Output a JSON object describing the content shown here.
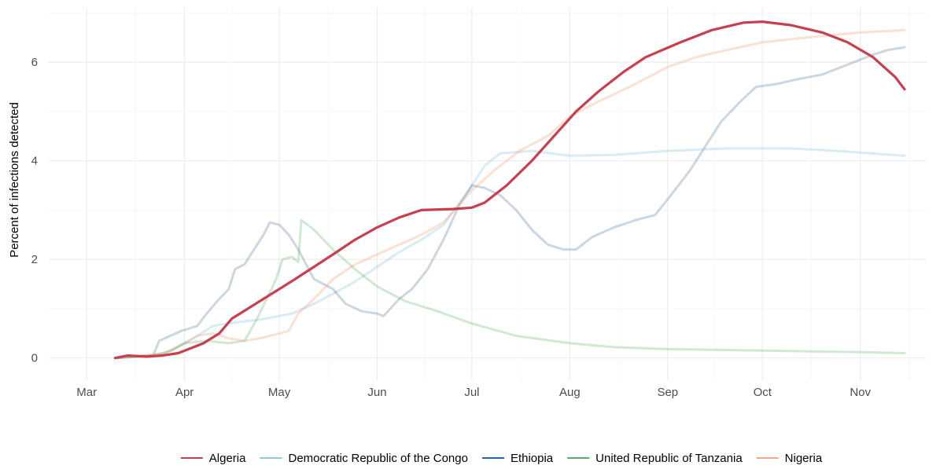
{
  "chart_data": {
    "type": "line",
    "title": "",
    "xlabel": "",
    "ylabel": "Percent of infections detected",
    "x_ticks": [
      "Mar",
      "Apr",
      "May",
      "Jun",
      "Jul",
      "Aug",
      "Sep",
      "Oct",
      "Nov"
    ],
    "x_tick_dates": [
      "2020-03-01",
      "2020-04-01",
      "2020-05-01",
      "2020-06-01",
      "2020-07-01",
      "2020-08-01",
      "2020-09-01",
      "2020-10-01",
      "2020-11-01"
    ],
    "xlim": [
      "2020-02-18",
      "2020-11-22"
    ],
    "y_ticks": [
      0,
      2,
      4,
      6
    ],
    "ylim": [
      -0.45,
      7.1
    ],
    "grid": true,
    "legend_position": "bottom",
    "series": [
      {
        "name": "Democratic Republic of the Congo",
        "color": "#92c5de",
        "opacity": 0.35,
        "points": [
          [
            "2020-03-10",
            0
          ],
          [
            "2020-03-25",
            0.08
          ],
          [
            "2020-04-01",
            0.3
          ],
          [
            "2020-04-05",
            0.45
          ],
          [
            "2020-04-10",
            0.65
          ],
          [
            "2020-04-17",
            0.72
          ],
          [
            "2020-04-25",
            0.78
          ],
          [
            "2020-05-05",
            0.9
          ],
          [
            "2020-05-12",
            1.1
          ],
          [
            "2020-05-18",
            1.3
          ],
          [
            "2020-05-25",
            1.55
          ],
          [
            "2020-06-01",
            1.85
          ],
          [
            "2020-06-08",
            2.15
          ],
          [
            "2020-06-15",
            2.4
          ],
          [
            "2020-06-22",
            2.7
          ],
          [
            "2020-06-30",
            3.4
          ],
          [
            "2020-07-05",
            3.9
          ],
          [
            "2020-07-10",
            4.15
          ],
          [
            "2020-07-20",
            4.2
          ],
          [
            "2020-08-01",
            4.1
          ],
          [
            "2020-08-15",
            4.12
          ],
          [
            "2020-09-01",
            4.2
          ],
          [
            "2020-09-20",
            4.25
          ],
          [
            "2020-10-10",
            4.25
          ],
          [
            "2020-10-25",
            4.2
          ],
          [
            "2020-11-15",
            4.1
          ]
        ]
      },
      {
        "name": "Ethiopia",
        "color": "#4a7193",
        "opacity": 0.28,
        "points": [
          [
            "2020-03-10",
            0
          ],
          [
            "2020-03-22",
            0.05
          ],
          [
            "2020-03-24",
            0.35
          ],
          [
            "2020-03-31",
            0.55
          ],
          [
            "2020-04-05",
            0.65
          ],
          [
            "2020-04-08",
            0.9
          ],
          [
            "2020-04-12",
            1.2
          ],
          [
            "2020-04-15",
            1.4
          ],
          [
            "2020-04-17",
            1.8
          ],
          [
            "2020-04-20",
            1.9
          ],
          [
            "2020-04-23",
            2.2
          ],
          [
            "2020-04-26",
            2.5
          ],
          [
            "2020-04-28",
            2.75
          ],
          [
            "2020-05-01",
            2.7
          ],
          [
            "2020-05-04",
            2.5
          ],
          [
            "2020-05-07",
            2.2
          ],
          [
            "2020-05-12",
            1.6
          ],
          [
            "2020-05-18",
            1.4
          ],
          [
            "2020-05-22",
            1.1
          ],
          [
            "2020-05-27",
            0.95
          ],
          [
            "2020-06-01",
            0.9
          ],
          [
            "2020-06-03",
            0.85
          ],
          [
            "2020-06-08",
            1.2
          ],
          [
            "2020-06-12",
            1.4
          ],
          [
            "2020-06-17",
            1.8
          ],
          [
            "2020-06-22",
            2.4
          ],
          [
            "2020-06-27",
            3.1
          ],
          [
            "2020-07-01",
            3.5
          ],
          [
            "2020-07-05",
            3.45
          ],
          [
            "2020-07-10",
            3.3
          ],
          [
            "2020-07-15",
            3.0
          ],
          [
            "2020-07-20",
            2.6
          ],
          [
            "2020-07-25",
            2.3
          ],
          [
            "2020-07-30",
            2.2
          ],
          [
            "2020-08-03",
            2.2
          ],
          [
            "2020-08-08",
            2.45
          ],
          [
            "2020-08-15",
            2.65
          ],
          [
            "2020-08-22",
            2.8
          ],
          [
            "2020-08-28",
            2.9
          ],
          [
            "2020-09-02",
            3.3
          ],
          [
            "2020-09-08",
            3.8
          ],
          [
            "2020-09-13",
            4.3
          ],
          [
            "2020-09-18",
            4.8
          ],
          [
            "2020-09-24",
            5.2
          ],
          [
            "2020-09-29",
            5.5
          ],
          [
            "2020-10-05",
            5.55
          ],
          [
            "2020-10-12",
            5.65
          ],
          [
            "2020-10-20",
            5.75
          ],
          [
            "2020-10-28",
            5.95
          ],
          [
            "2020-11-05",
            6.15
          ],
          [
            "2020-11-10",
            6.25
          ],
          [
            "2020-11-15",
            6.3
          ]
        ]
      },
      {
        "name": "Nigeria",
        "color": "#f4a582",
        "opacity": 0.35,
        "points": [
          [
            "2020-03-10",
            0
          ],
          [
            "2020-03-18",
            0.05
          ],
          [
            "2020-03-26",
            0.1
          ],
          [
            "2020-04-01",
            0.3
          ],
          [
            "2020-04-05",
            0.45
          ],
          [
            "2020-04-10",
            0.5
          ],
          [
            "2020-04-15",
            0.4
          ],
          [
            "2020-04-20",
            0.35
          ],
          [
            "2020-04-25",
            0.4
          ],
          [
            "2020-05-01",
            0.5
          ],
          [
            "2020-05-04",
            0.55
          ],
          [
            "2020-05-07",
            0.9
          ],
          [
            "2020-05-12",
            1.2
          ],
          [
            "2020-05-18",
            1.6
          ],
          [
            "2020-05-25",
            1.9
          ],
          [
            "2020-06-01",
            2.1
          ],
          [
            "2020-06-08",
            2.3
          ],
          [
            "2020-06-15",
            2.5
          ],
          [
            "2020-06-22",
            2.75
          ],
          [
            "2020-07-01",
            3.4
          ],
          [
            "2020-07-08",
            3.8
          ],
          [
            "2020-07-16",
            4.2
          ],
          [
            "2020-07-25",
            4.5
          ],
          [
            "2020-08-01",
            4.9
          ],
          [
            "2020-08-10",
            5.2
          ],
          [
            "2020-08-20",
            5.5
          ],
          [
            "2020-09-01",
            5.9
          ],
          [
            "2020-09-10",
            6.1
          ],
          [
            "2020-09-20",
            6.25
          ],
          [
            "2020-10-01",
            6.4
          ],
          [
            "2020-10-15",
            6.5
          ],
          [
            "2020-11-01",
            6.6
          ],
          [
            "2020-11-15",
            6.65
          ]
        ]
      },
      {
        "name": "United Republic of Tanzania",
        "color": "#5aae61",
        "opacity": 0.28,
        "points": [
          [
            "2020-03-10",
            0
          ],
          [
            "2020-03-22",
            0.05
          ],
          [
            "2020-03-28",
            0.15
          ],
          [
            "2020-04-01",
            0.3
          ],
          [
            "2020-04-08",
            0.35
          ],
          [
            "2020-04-15",
            0.3
          ],
          [
            "2020-04-20",
            0.35
          ],
          [
            "2020-04-24",
            0.8
          ],
          [
            "2020-04-27",
            1.2
          ],
          [
            "2020-04-30",
            1.6
          ],
          [
            "2020-05-02",
            2.0
          ],
          [
            "2020-05-05",
            2.05
          ],
          [
            "2020-05-07",
            1.95
          ],
          [
            "2020-05-08",
            2.8
          ],
          [
            "2020-05-12",
            2.6
          ],
          [
            "2020-05-18",
            2.2
          ],
          [
            "2020-05-25",
            1.8
          ],
          [
            "2020-06-01",
            1.45
          ],
          [
            "2020-06-10",
            1.15
          ],
          [
            "2020-06-20",
            0.95
          ],
          [
            "2020-07-01",
            0.7
          ],
          [
            "2020-07-15",
            0.45
          ],
          [
            "2020-08-01",
            0.3
          ],
          [
            "2020-08-15",
            0.22
          ],
          [
            "2020-09-01",
            0.18
          ],
          [
            "2020-10-01",
            0.15
          ],
          [
            "2020-11-01",
            0.12
          ],
          [
            "2020-11-15",
            0.1
          ]
        ]
      },
      {
        "name": "Algeria",
        "color": "#c83f4f",
        "opacity": 1,
        "points": [
          [
            "2020-03-10",
            0
          ],
          [
            "2020-03-14",
            0.05
          ],
          [
            "2020-03-20",
            0.03
          ],
          [
            "2020-03-25",
            0.05
          ],
          [
            "2020-03-30",
            0.1
          ],
          [
            "2020-04-03",
            0.2
          ],
          [
            "2020-04-07",
            0.3
          ],
          [
            "2020-04-12",
            0.5
          ],
          [
            "2020-04-16",
            0.8
          ],
          [
            "2020-04-21",
            1.0
          ],
          [
            "2020-04-26",
            1.2
          ],
          [
            "2020-05-01",
            1.4
          ],
          [
            "2020-05-06",
            1.6
          ],
          [
            "2020-05-12",
            1.85
          ],
          [
            "2020-05-18",
            2.1
          ],
          [
            "2020-05-25",
            2.4
          ],
          [
            "2020-06-01",
            2.65
          ],
          [
            "2020-06-08",
            2.85
          ],
          [
            "2020-06-15",
            3.0
          ],
          [
            "2020-06-25",
            3.02
          ],
          [
            "2020-07-01",
            3.05
          ],
          [
            "2020-07-05",
            3.15
          ],
          [
            "2020-07-12",
            3.5
          ],
          [
            "2020-07-20",
            4.0
          ],
          [
            "2020-07-27",
            4.5
          ],
          [
            "2020-08-03",
            5.0
          ],
          [
            "2020-08-10",
            5.4
          ],
          [
            "2020-08-18",
            5.8
          ],
          [
            "2020-08-25",
            6.1
          ],
          [
            "2020-09-05",
            6.4
          ],
          [
            "2020-09-15",
            6.65
          ],
          [
            "2020-09-25",
            6.8
          ],
          [
            "2020-10-01",
            6.82
          ],
          [
            "2020-10-10",
            6.75
          ],
          [
            "2020-10-20",
            6.6
          ],
          [
            "2020-10-28",
            6.4
          ],
          [
            "2020-11-05",
            6.1
          ],
          [
            "2020-11-12",
            5.7
          ],
          [
            "2020-11-15",
            5.45
          ]
        ]
      }
    ],
    "legend": [
      {
        "name": "Algeria",
        "color": "#c83f4f"
      },
      {
        "name": "Democratic Republic of the Congo",
        "color": "#92c5de"
      },
      {
        "name": "Ethiopia",
        "color": "#2166ac"
      },
      {
        "name": "United Republic of Tanzania",
        "color": "#5aae61"
      },
      {
        "name": "Nigeria",
        "color": "#f4a582"
      }
    ]
  }
}
